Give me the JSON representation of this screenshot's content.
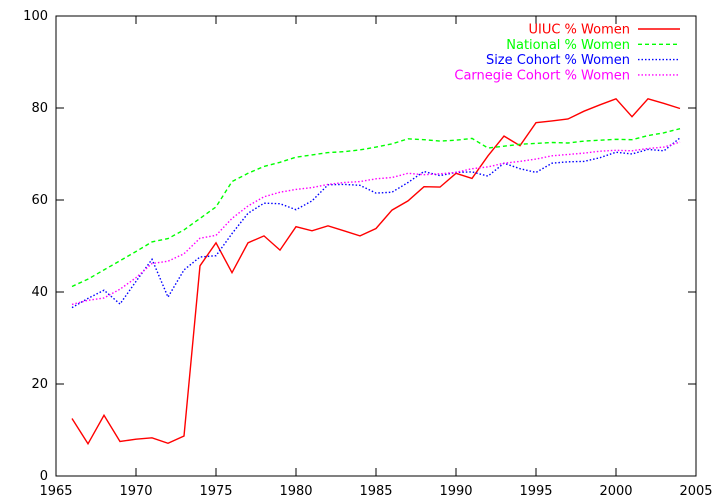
{
  "chart_data": {
    "type": "line",
    "title": "",
    "xlabel": "",
    "ylabel": "",
    "xlim": [
      1965,
      2005
    ],
    "ylim": [
      0,
      100
    ],
    "xticks": [
      1965,
      1970,
      1975,
      1980,
      1985,
      1990,
      1995,
      2000,
      2005
    ],
    "yticks": [
      0,
      20,
      40,
      60,
      80,
      100
    ],
    "grid": false,
    "legend_position": "top-right",
    "x": [
      1966,
      1967,
      1968,
      1969,
      1970,
      1971,
      1972,
      1973,
      1974,
      1975,
      1976,
      1977,
      1978,
      1979,
      1980,
      1981,
      1982,
      1983,
      1984,
      1985,
      1986,
      1987,
      1988,
      1989,
      1990,
      1991,
      1992,
      1993,
      1994,
      1995,
      1996,
      1997,
      1998,
      1999,
      2000,
      2001,
      2002,
      2003,
      2004
    ],
    "series": [
      {
        "name": "UIUC % Women",
        "color": "#ff0000",
        "dash": "solid",
        "values": [
          12.5,
          7.0,
          13.2,
          7.5,
          8.0,
          8.3,
          7.1,
          8.7,
          45.7,
          50.7,
          44.2,
          50.7,
          52.2,
          49.1,
          54.2,
          53.3,
          54.4,
          53.3,
          52.2,
          53.8,
          57.8,
          59.8,
          62.9,
          62.8,
          65.8,
          64.7,
          69.6,
          73.9,
          71.8,
          76.8,
          77.2,
          77.6,
          79.3,
          80.7,
          82.0,
          78.1,
          82.0,
          81.0,
          79.9
        ]
      },
      {
        "name": "National % Women",
        "color": "#00ff00",
        "dash": "dashed",
        "values": [
          41.2,
          42.8,
          44.8,
          46.8,
          48.8,
          50.9,
          51.6,
          53.5,
          56.0,
          58.5,
          64.0,
          65.8,
          67.3,
          68.2,
          69.3,
          69.8,
          70.3,
          70.5,
          70.9,
          71.5,
          72.2,
          73.3,
          73.1,
          72.8,
          73.0,
          73.4,
          71.3,
          71.7,
          72.1,
          72.3,
          72.5,
          72.4,
          72.8,
          73.0,
          73.2,
          73.1,
          74.0,
          74.6,
          75.5
        ]
      },
      {
        "name": "Size Cohort % Women",
        "color": "#0000ff",
        "dash": "dotted",
        "values": [
          36.6,
          38.6,
          40.4,
          37.4,
          42.3,
          47.1,
          38.9,
          44.8,
          47.6,
          47.9,
          52.7,
          57.1,
          59.3,
          59.2,
          57.9,
          59.8,
          63.3,
          63.4,
          63.2,
          61.5,
          61.7,
          63.8,
          66.2,
          65.3,
          66.0,
          66.1,
          65.2,
          68.0,
          66.8,
          66.0,
          68.0,
          68.3,
          68.4,
          69.2,
          70.4,
          70.0,
          71.0,
          70.7,
          73.5
        ]
      },
      {
        "name": "Carnegie Cohort % Women",
        "color": "#ff00ff",
        "dash": "dotted",
        "values": [
          37.3,
          38.2,
          38.7,
          40.6,
          43.1,
          46.2,
          46.7,
          48.3,
          51.7,
          52.3,
          56.0,
          58.7,
          60.7,
          61.7,
          62.3,
          62.7,
          63.4,
          63.8,
          64.0,
          64.6,
          64.9,
          65.8,
          65.5,
          65.7,
          66.0,
          66.8,
          67.2,
          68.0,
          68.4,
          68.9,
          69.6,
          69.9,
          70.2,
          70.6,
          70.8,
          70.7,
          71.2,
          71.5,
          72.6
        ]
      }
    ]
  }
}
